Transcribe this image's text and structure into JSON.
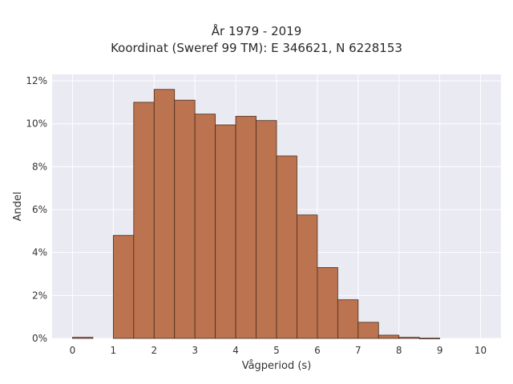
{
  "chart_data": {
    "type": "bar",
    "title": "År 1979 - 2019",
    "subtitle": "Koordinat (Sweref 99 TM): E 346621, N 6228153",
    "xlabel": "Vågperiod (s)",
    "ylabel": "Andel",
    "bin_width": 0.5,
    "bin_starts": [
      0,
      0.5,
      1,
      1.5,
      2,
      2.5,
      3,
      3.5,
      4,
      4.5,
      5,
      5.5,
      6,
      6.5,
      7,
      7.5,
      8,
      8.5,
      9,
      9.5
    ],
    "values": [
      0.05,
      0,
      4.8,
      11.0,
      11.6,
      11.1,
      10.45,
      9.95,
      10.35,
      10.15,
      8.5,
      5.75,
      3.3,
      1.8,
      0.75,
      0.15,
      0.05,
      0.01,
      0,
      0
    ],
    "xlim": [
      -0.5,
      10.5
    ],
    "ylim": [
      0,
      12.3
    ],
    "xticks": [
      "0",
      "1",
      "2",
      "3",
      "4",
      "5",
      "6",
      "7",
      "8",
      "9",
      "10"
    ],
    "yticks": [
      "0%",
      "2%",
      "4%",
      "6%",
      "8%",
      "10%",
      "12%"
    ],
    "grid": true,
    "bar_color": "#bb7350",
    "edge_color": "#4a2c1c",
    "background_color": "#eaeaf2"
  }
}
